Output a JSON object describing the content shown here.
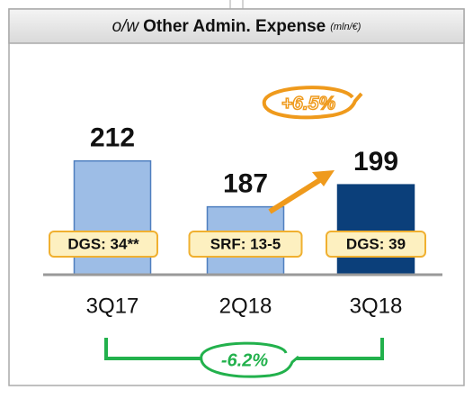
{
  "chart_data": {
    "type": "bar",
    "title_prefix": "o/w",
    "title": "Other Admin. Expense",
    "unit": "(mln/€)",
    "categories": [
      "3Q17",
      "2Q18",
      "3Q18"
    ],
    "values": [
      212,
      187,
      199
    ],
    "colors": [
      "#9dbde6",
      "#9dbde6",
      "#0b3f7a"
    ],
    "box_labels": [
      "DGS: 34**",
      "SRF: 13-5",
      "DGS: 39"
    ],
    "ylim": [
      150,
      230
    ],
    "annotations": [
      "+6.5%",
      "-6.2%"
    ]
  }
}
